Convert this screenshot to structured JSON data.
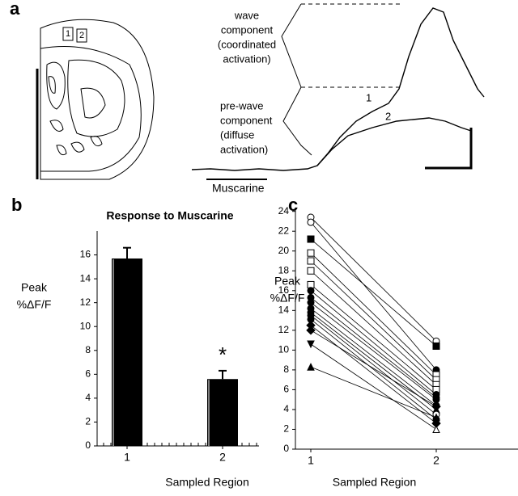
{
  "panel_a": {
    "label": "a",
    "wave_label": [
      "wave",
      "component",
      "(coordinated",
      "activation)"
    ],
    "prewave_label": [
      "pre-wave",
      "component",
      "(diffuse",
      "activation)"
    ],
    "trace_labels": [
      "1",
      "2"
    ],
    "region_labels": [
      "1",
      "2"
    ],
    "stimulus": "Muscarine"
  },
  "chart_data": [
    {
      "type": "bar",
      "panel_label": "b",
      "title": "Response to Muscarine",
      "y_label": [
        "Peak",
        "%ΔF/F"
      ],
      "x_label": "Sampled Region",
      "categories": [
        "1",
        "2"
      ],
      "values": [
        15.7,
        5.6
      ],
      "errors": [
        0.9,
        0.7
      ],
      "annotations": [
        null,
        "*"
      ],
      "color": "#000000",
      "ylim": [
        0,
        18
      ],
      "yticks": [
        0,
        2,
        4,
        6,
        8,
        10,
        12,
        14,
        16
      ]
    },
    {
      "type": "line",
      "panel_label": "c",
      "y_label": [
        "Peak",
        "%ΔF/F"
      ],
      "x_label": "Sampled Region",
      "categories": [
        "1",
        "2"
      ],
      "color": "#000000",
      "ylim": [
        0,
        24.3
      ],
      "yticks": [
        0,
        2,
        4,
        6,
        8,
        10,
        12,
        14,
        16,
        18,
        20,
        22,
        24
      ],
      "series": [
        {
          "values": [
            23.4,
            10.9
          ],
          "markers": [
            "circle-open",
            "circle-open"
          ]
        },
        {
          "values": [
            22.9,
            8.0
          ],
          "markers": [
            "circle-open",
            "circle"
          ]
        },
        {
          "values": [
            21.2,
            10.4
          ],
          "markers": [
            "square",
            "square"
          ]
        },
        {
          "values": [
            19.8,
            7.5
          ],
          "markers": [
            "square-open",
            "square-open"
          ]
        },
        {
          "values": [
            19.0,
            7.0
          ],
          "markers": [
            "square-open",
            "square-open"
          ]
        },
        {
          "values": [
            18.0,
            6.5
          ],
          "markers": [
            "square-open",
            "square-open"
          ]
        },
        {
          "values": [
            16.6,
            6.0
          ],
          "markers": [
            "square-open",
            "square-open"
          ]
        },
        {
          "values": [
            16.0,
            5.5
          ],
          "markers": [
            "circle",
            "circle"
          ]
        },
        {
          "values": [
            15.3,
            5.2
          ],
          "markers": [
            "circle",
            "circle"
          ]
        },
        {
          "values": [
            14.8,
            5.0
          ],
          "markers": [
            "circle",
            "circle"
          ]
        },
        {
          "values": [
            14.2,
            4.4
          ],
          "markers": [
            "circle",
            "circle"
          ]
        },
        {
          "values": [
            13.8,
            4.0
          ],
          "markers": [
            "circle",
            "triangle-up"
          ]
        },
        {
          "values": [
            13.5,
            3.5
          ],
          "markers": [
            "circle",
            "circle-open"
          ]
        },
        {
          "values": [
            13.1,
            3.0
          ],
          "markers": [
            "circle",
            "circle"
          ]
        },
        {
          "values": [
            12.5,
            2.6
          ],
          "markers": [
            "diamond",
            "diamond"
          ]
        },
        {
          "values": [
            12.0,
            4.3
          ],
          "markers": [
            "diamond",
            "diamond"
          ]
        },
        {
          "values": [
            10.6,
            2.0
          ],
          "markers": [
            "triangle-down",
            "triangle-open"
          ]
        },
        {
          "values": [
            8.3,
            3.2
          ],
          "markers": [
            "triangle-up",
            "triangle-up"
          ]
        }
      ]
    }
  ]
}
